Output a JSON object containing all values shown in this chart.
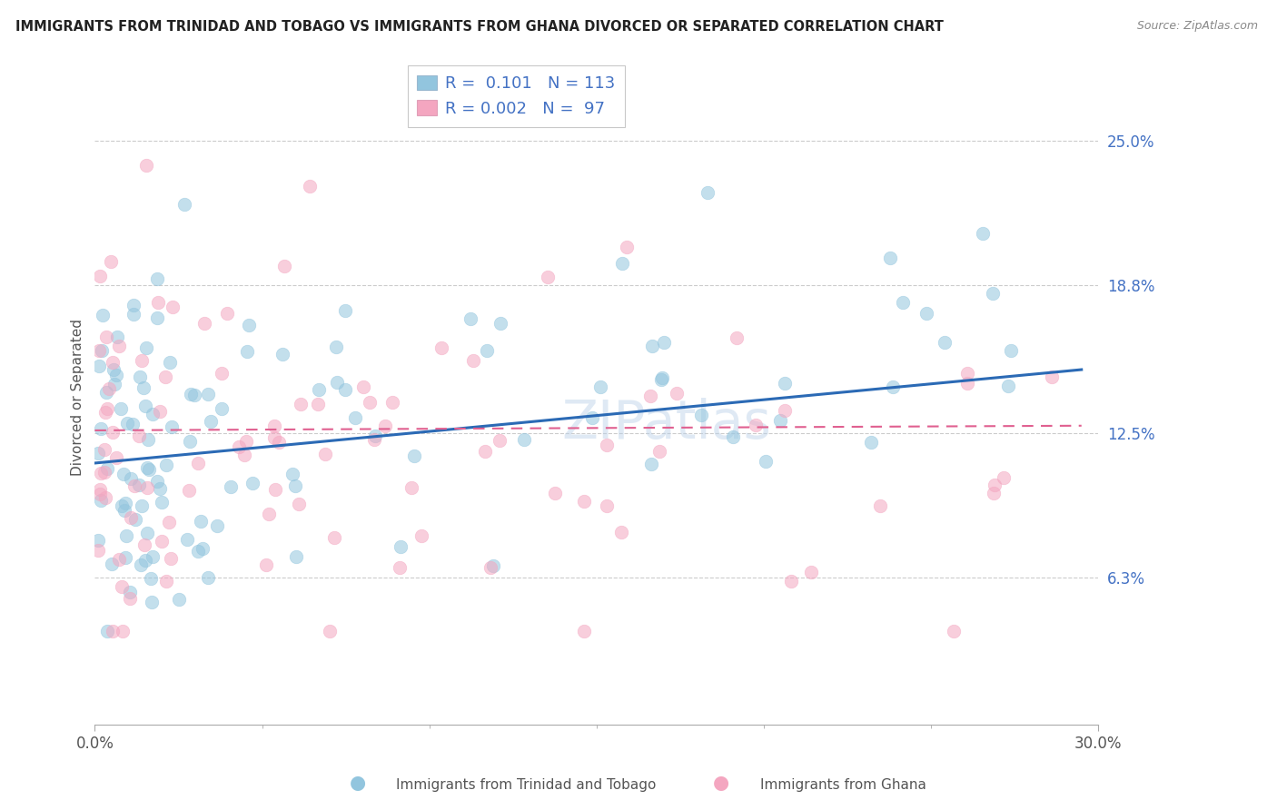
{
  "title": "IMMIGRANTS FROM TRINIDAD AND TOBAGO VS IMMIGRANTS FROM GHANA DIVORCED OR SEPARATED CORRELATION CHART",
  "source": "Source: ZipAtlas.com",
  "ylabel": "Divorced or Separated",
  "xlim": [
    0.0,
    0.3
  ],
  "ylim": [
    0.0,
    0.28
  ],
  "yticks": [
    0.063,
    0.125,
    0.188,
    0.25
  ],
  "ytick_labels": [
    "6.3%",
    "12.5%",
    "18.8%",
    "25.0%"
  ],
  "xtick_labels": [
    "0.0%",
    "30.0%"
  ],
  "legend_line1": "R =  0.101   N = 113",
  "legend_line2": "R = 0.002   N =  97",
  "color_blue": "#92c5de",
  "color_pink": "#f4a6c0",
  "color_blue_line": "#2b6ab5",
  "color_pink_line": "#e06090",
  "color_text_blue": "#4472c4",
  "watermark": "ZIPatlas",
  "label1": "Immigrants from Trinidad and Tobago",
  "label2": "Immigrants from Ghana",
  "background_color": "#ffffff",
  "grid_color": "#cccccc",
  "trend_blue_start_y": 0.112,
  "trend_blue_end_y": 0.152,
  "trend_pink_start_y": 0.126,
  "trend_pink_end_y": 0.128
}
